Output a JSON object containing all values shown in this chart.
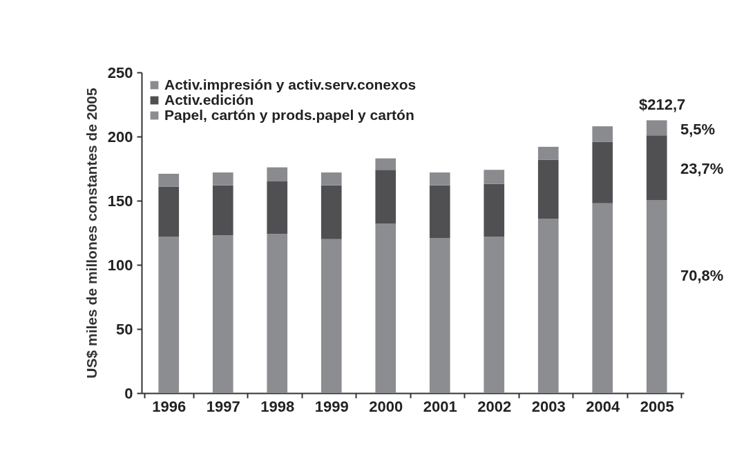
{
  "chart_data": {
    "type": "bar",
    "stacked": true,
    "ylabel": "US$ miles de millones constantes de 2005",
    "categories": [
      "1996",
      "1997",
      "1998",
      "1999",
      "2000",
      "2001",
      "2002",
      "2003",
      "2004",
      "2005"
    ],
    "series": [
      {
        "name": "Papel, cartón y prods.papel y cartón",
        "color": "#8c8d91",
        "values": [
          122,
          123,
          124,
          120,
          132,
          121,
          122,
          136,
          148,
          150.6
        ]
      },
      {
        "name": "Activ.edición",
        "color": "#505053",
        "values": [
          39,
          39,
          41,
          42,
          42,
          41,
          41,
          46,
          48,
          50.4
        ]
      },
      {
        "name": "Activ.impresión y activ.serv.conexos",
        "color": "#8a8b8f",
        "values": [
          10,
          10,
          11,
          10,
          9,
          10,
          11,
          10,
          12,
          11.7
        ]
      }
    ],
    "ylim": [
      0,
      250
    ],
    "yticks": [
      0,
      50,
      100,
      150,
      200,
      250
    ],
    "grid": false,
    "legend": "top left",
    "annotations": [
      "$212,7",
      "5,5%",
      "23,7%",
      "70,8%"
    ]
  }
}
